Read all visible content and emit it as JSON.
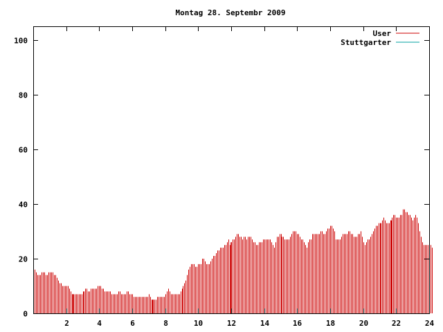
{
  "chart_data": {
    "type": "bar",
    "title": "Montag 28. Septembr 2009",
    "xlabel": "",
    "ylabel": "",
    "xlim": [
      0,
      24
    ],
    "ylim": [
      0,
      105
    ],
    "x_ticks": [
      2,
      4,
      6,
      8,
      10,
      12,
      14,
      16,
      18,
      20,
      22,
      24
    ],
    "y_ticks": [
      0,
      20,
      40,
      60,
      80,
      100
    ],
    "grid": false,
    "legend_position": "top-right",
    "series": [
      {
        "name": "User",
        "color": "#cc0000",
        "resolution_minutes": 5,
        "values": [
          18,
          16,
          15,
          14,
          14,
          14,
          15,
          15,
          15,
          14,
          14,
          15,
          15,
          15,
          15,
          14,
          14,
          13,
          12,
          11,
          11,
          10,
          10,
          10,
          10,
          10,
          9,
          8,
          7,
          7,
          7,
          7,
          7,
          7,
          7,
          7,
          8,
          8,
          9,
          9,
          8,
          8,
          9,
          9,
          9,
          9,
          9,
          10,
          10,
          10,
          9,
          9,
          8,
          8,
          8,
          8,
          8,
          7,
          7,
          7,
          7,
          7,
          8,
          8,
          7,
          7,
          7,
          7,
          8,
          8,
          7,
          7,
          7,
          6,
          6,
          6,
          6,
          6,
          6,
          6,
          6,
          6,
          6,
          6,
          7,
          6,
          5,
          5,
          5,
          5,
          6,
          6,
          6,
          6,
          6,
          6,
          7,
          8,
          9,
          8,
          7,
          7,
          7,
          7,
          7,
          7,
          7,
          8,
          9,
          10,
          11,
          12,
          14,
          16,
          17,
          18,
          18,
          18,
          17,
          17,
          18,
          18,
          18,
          20,
          20,
          19,
          18,
          18,
          18,
          19,
          20,
          21,
          21,
          22,
          23,
          23,
          24,
          24,
          24,
          25,
          25,
          26,
          27,
          25,
          26,
          27,
          27,
          28,
          29,
          29,
          28,
          28,
          27,
          28,
          28,
          27,
          28,
          28,
          28,
          27,
          26,
          26,
          25,
          25,
          26,
          26,
          26,
          27,
          27,
          27,
          27,
          27,
          27,
          26,
          25,
          24,
          26,
          28,
          28,
          29,
          29,
          28,
          28,
          27,
          27,
          27,
          27,
          28,
          29,
          30,
          30,
          30,
          29,
          29,
          28,
          27,
          27,
          26,
          25,
          24,
          26,
          27,
          27,
          29,
          29,
          29,
          29,
          29,
          29,
          30,
          30,
          29,
          29,
          30,
          31,
          31,
          32,
          32,
          31,
          30,
          27,
          27,
          27,
          27,
          28,
          29,
          29,
          29,
          29,
          30,
          30,
          29,
          29,
          28,
          28,
          28,
          29,
          29,
          30,
          28,
          26,
          25,
          26,
          27,
          27,
          28,
          29,
          30,
          31,
          32,
          32,
          33,
          33,
          33,
          34,
          35,
          34,
          33,
          33,
          33,
          34,
          35,
          36,
          36,
          35,
          35,
          35,
          36,
          36,
          38,
          38,
          37,
          37,
          36,
          36,
          35,
          34,
          35,
          36,
          35,
          33,
          30,
          28,
          26,
          25,
          25,
          25,
          25,
          25,
          25,
          24
        ]
      },
      {
        "name": "Stuttgarter",
        "color": "#00a0a0",
        "values": []
      }
    ]
  }
}
